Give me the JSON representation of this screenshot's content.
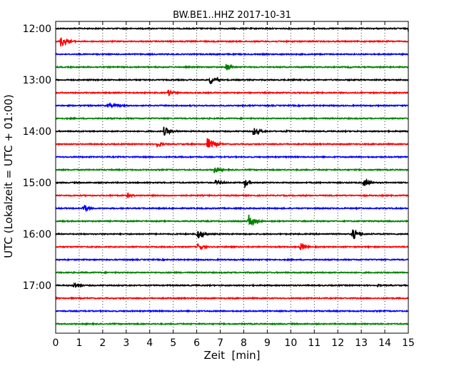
{
  "chart_data": {
    "type": "line",
    "title": "BW.BE1..HHZ 2017-10-31",
    "xlabel": "Zeit  [min]",
    "ylabel": "UTC (Lokalzeit = UTC + 01:00)",
    "xlim": [
      0,
      15
    ],
    "x_ticks": [
      0,
      1,
      2,
      3,
      4,
      5,
      6,
      7,
      8,
      9,
      10,
      11,
      12,
      13,
      14,
      15
    ],
    "x_tick_labels": [
      "0",
      "1",
      "2",
      "3",
      "4",
      "5",
      "6",
      "7",
      "8",
      "9",
      "10",
      "11",
      "12",
      "13",
      "14",
      "15"
    ],
    "y_tick_labels": [
      "12:00",
      "13:00",
      "14:00",
      "15:00",
      "16:00",
      "17:00"
    ],
    "grid": "vertical dotted",
    "trace_interval_min": 15,
    "colors": [
      "#000000",
      "#ff0000",
      "#0000ff",
      "#008000"
    ],
    "series": [
      {
        "start": "12:00",
        "color": "#000000",
        "events": [
          {
            "t": 15.0,
            "amp": 0.35,
            "dur": 0.2
          }
        ]
      },
      {
        "start": "12:15",
        "color": "#ff0000",
        "events": [
          {
            "t": 0.2,
            "amp": 0.7,
            "dur": 0.5
          }
        ]
      },
      {
        "start": "12:30",
        "color": "#0000ff",
        "events": []
      },
      {
        "start": "12:45",
        "color": "#008000",
        "events": [
          {
            "t": 7.25,
            "amp": 0.55,
            "dur": 0.35
          },
          {
            "t": 12.5,
            "amp": 0.15,
            "dur": 0.15
          }
        ]
      },
      {
        "start": "13:00",
        "color": "#000000",
        "events": [
          {
            "t": 6.55,
            "amp": 0.6,
            "dur": 0.4
          }
        ]
      },
      {
        "start": "13:15",
        "color": "#ff0000",
        "events": [
          {
            "t": 4.75,
            "amp": 0.4,
            "dur": 0.5
          },
          {
            "t": 10.0,
            "amp": 0.12,
            "dur": 0.2
          }
        ]
      },
      {
        "start": "13:30",
        "color": "#0000ff",
        "events": [
          {
            "t": 2.2,
            "amp": 0.22,
            "dur": 1.2
          }
        ]
      },
      {
        "start": "13:45",
        "color": "#008000",
        "events": [
          {
            "t": 12.5,
            "amp": 0.1,
            "dur": 0.2
          }
        ]
      },
      {
        "start": "14:00",
        "color": "#000000",
        "events": [
          {
            "t": 4.6,
            "amp": 0.55,
            "dur": 0.5
          },
          {
            "t": 8.4,
            "amp": 0.5,
            "dur": 0.5
          },
          {
            "t": 9.8,
            "amp": 0.2,
            "dur": 0.2
          }
        ]
      },
      {
        "start": "14:15",
        "color": "#ff0000",
        "events": [
          {
            "t": 4.3,
            "amp": 0.4,
            "dur": 0.4
          },
          {
            "t": 6.45,
            "amp": 0.75,
            "dur": 0.5
          }
        ]
      },
      {
        "start": "14:30",
        "color": "#0000ff",
        "events": [
          {
            "t": 3.8,
            "amp": 0.12,
            "dur": 0.2
          }
        ]
      },
      {
        "start": "14:45",
        "color": "#008000",
        "events": [
          {
            "t": 6.75,
            "amp": 0.45,
            "dur": 0.4
          }
        ]
      },
      {
        "start": "15:00",
        "color": "#000000",
        "events": [
          {
            "t": 6.8,
            "amp": 0.35,
            "dur": 0.5
          },
          {
            "t": 8.05,
            "amp": 0.55,
            "dur": 0.3
          },
          {
            "t": 13.1,
            "amp": 0.6,
            "dur": 0.35
          }
        ]
      },
      {
        "start": "15:15",
        "color": "#ff0000",
        "events": [
          {
            "t": 3.05,
            "amp": 0.3,
            "dur": 0.4
          }
        ]
      },
      {
        "start": "15:30",
        "color": "#0000ff",
        "events": [
          {
            "t": 1.15,
            "amp": 0.6,
            "dur": 0.35
          }
        ]
      },
      {
        "start": "15:45",
        "color": "#008000",
        "events": [
          {
            "t": 8.2,
            "amp": 0.9,
            "dur": 0.4
          }
        ]
      },
      {
        "start": "16:00",
        "color": "#000000",
        "events": [
          {
            "t": 6.0,
            "amp": 0.8,
            "dur": 0.4
          },
          {
            "t": 12.6,
            "amp": 0.8,
            "dur": 0.4
          }
        ]
      },
      {
        "start": "16:15",
        "color": "#ff0000",
        "events": [
          {
            "t": 6.05,
            "amp": 0.45,
            "dur": 0.4
          },
          {
            "t": 10.4,
            "amp": 0.55,
            "dur": 0.35
          }
        ]
      },
      {
        "start": "16:30",
        "color": "#0000ff",
        "events": []
      },
      {
        "start": "16:45",
        "color": "#008000",
        "events": []
      },
      {
        "start": "17:00",
        "color": "#000000",
        "events": [
          {
            "t": 0.75,
            "amp": 0.5,
            "dur": 0.4
          },
          {
            "t": 13.7,
            "amp": 0.2,
            "dur": 0.3
          }
        ]
      },
      {
        "start": "17:15",
        "color": "#ff0000",
        "events": []
      },
      {
        "start": "17:30",
        "color": "#0000ff",
        "events": [
          {
            "t": 11.2,
            "amp": 0.08,
            "dur": 0.3
          }
        ]
      },
      {
        "start": "17:45",
        "color": "#008000",
        "events": []
      }
    ]
  }
}
